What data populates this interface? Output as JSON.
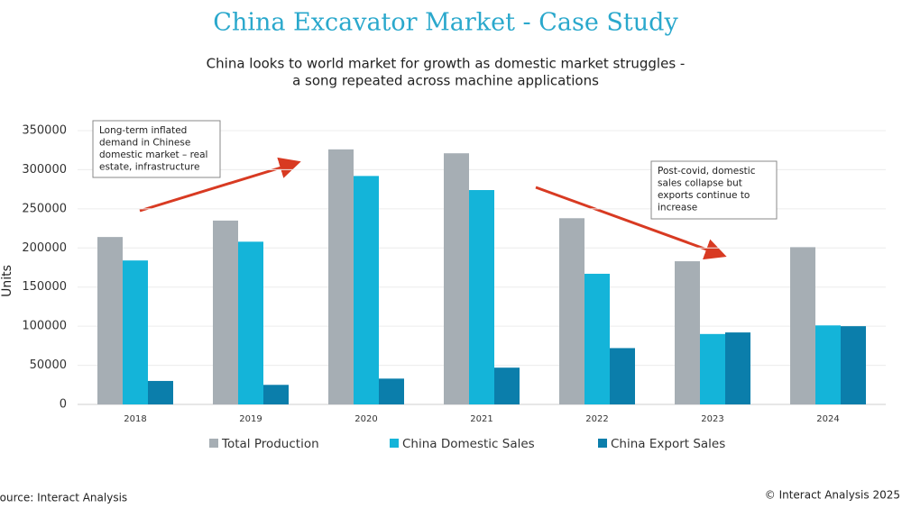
{
  "chart_data": {
    "type": "bar",
    "title": "China Excavator Market - Case Study",
    "subtitle": [
      "China looks to world market for growth as domestic market struggles -",
      "a song repeated across machine applications"
    ],
    "y_label": "Units",
    "categories": [
      "2018",
      "2019",
      "2020",
      "2021",
      "2022",
      "2023",
      "2024"
    ],
    "series": [
      {
        "name": "Total Production",
        "color": "#a6aeb4",
        "values": [
          214000,
          235000,
          326000,
          321000,
          238000,
          183000,
          201000
        ]
      },
      {
        "name": "China Domestic Sales",
        "color": "#14b4d9",
        "values": [
          184000,
          208000,
          292000,
          274000,
          167000,
          90000,
          101000
        ]
      },
      {
        "name": "China Export Sales",
        "color": "#0b7eab",
        "values": [
          30000,
          25000,
          33000,
          47000,
          72000,
          92000,
          100000
        ]
      }
    ],
    "ylim": [
      0,
      350000
    ],
    "yticks": [
      0,
      50000,
      100000,
      150000,
      200000,
      250000,
      300000,
      350000
    ],
    "grid": true,
    "legend": "bottom",
    "annotations": [
      [
        "Long-term inflated",
        "demand in Chinese",
        "domestic market – real",
        "estate, infrastructure"
      ],
      [
        "Post-covid, domestic",
        "sales collapse but",
        "exports continue to",
        "increase"
      ]
    ],
    "source": "Source: Interact Analysis",
    "copyright": "© Interact Analysis 2025"
  }
}
